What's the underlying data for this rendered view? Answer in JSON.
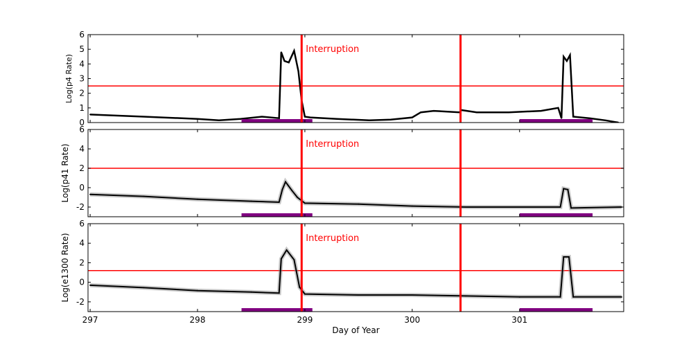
{
  "chart_data": {
    "type": "scatter",
    "xlabel": "Day of Year",
    "xlim": [
      296.98,
      301.97
    ],
    "xticks": [
      297,
      298,
      299,
      300,
      301
    ],
    "colors": {
      "data": "#000000",
      "threshold": "#ff0000",
      "interruption": "#ff0000",
      "interval": "#800080"
    },
    "interruptions": [
      298.97,
      300.45
    ],
    "interruption_label": "Interruption",
    "intervals": [
      [
        298.41,
        299.07
      ],
      [
        301.0,
        301.68
      ]
    ],
    "panels": [
      {
        "ylabel": "Log(p4 Rate)",
        "ylim": [
          0,
          6
        ],
        "yticks": [
          0,
          1,
          2,
          3,
          4,
          5,
          6
        ],
        "threshold": 2.5,
        "series": [
          [
            297.0,
            0.55
          ],
          [
            297.5,
            0.4
          ],
          [
            298.0,
            0.25
          ],
          [
            298.2,
            0.15
          ],
          [
            298.4,
            0.25
          ],
          [
            298.6,
            0.4
          ],
          [
            298.76,
            0.3
          ],
          [
            298.78,
            4.8
          ],
          [
            298.81,
            4.2
          ],
          [
            298.85,
            4.1
          ],
          [
            298.9,
            4.9
          ],
          [
            298.94,
            3.5
          ],
          [
            298.97,
            1.5
          ],
          [
            299.0,
            0.4
          ],
          [
            299.05,
            0.35
          ],
          [
            299.3,
            0.25
          ],
          [
            299.6,
            0.15
          ],
          [
            299.8,
            0.2
          ],
          [
            300.0,
            0.35
          ],
          [
            300.08,
            0.7
          ],
          [
            300.2,
            0.8
          ],
          [
            300.44,
            0.7
          ],
          [
            300.46,
            0.85
          ],
          [
            300.6,
            0.7
          ],
          [
            300.9,
            0.7
          ],
          [
            301.2,
            0.8
          ],
          [
            301.36,
            1.0
          ],
          [
            301.39,
            0.3
          ],
          [
            301.41,
            4.5
          ],
          [
            301.44,
            4.2
          ],
          [
            301.47,
            4.6
          ],
          [
            301.5,
            0.4
          ],
          [
            301.65,
            0.3
          ],
          [
            301.8,
            0.15
          ],
          [
            301.92,
            0.0
          ]
        ]
      },
      {
        "ylabel": "Log(p41 Rate)",
        "ylim": [
          -3,
          6
        ],
        "yticks": [
          -2,
          0,
          2,
          4,
          6
        ],
        "threshold": 2.0,
        "series": [
          [
            297.0,
            -0.7
          ],
          [
            297.5,
            -0.9
          ],
          [
            298.0,
            -1.2
          ],
          [
            298.5,
            -1.4
          ],
          [
            298.76,
            -1.5
          ],
          [
            298.79,
            -0.2
          ],
          [
            298.82,
            0.6
          ],
          [
            298.88,
            -0.3
          ],
          [
            298.93,
            -1.0
          ],
          [
            299.0,
            -1.6
          ],
          [
            299.5,
            -1.7
          ],
          [
            300.0,
            -1.9
          ],
          [
            300.5,
            -2.0
          ],
          [
            301.0,
            -2.0
          ],
          [
            301.38,
            -2.0
          ],
          [
            301.41,
            -0.1
          ],
          [
            301.45,
            -0.2
          ],
          [
            301.48,
            -2.1
          ],
          [
            301.95,
            -2.0
          ]
        ]
      },
      {
        "ylabel": "Log(e1300 Rate)",
        "ylim": [
          -3,
          6
        ],
        "yticks": [
          -2,
          0,
          2,
          4,
          6
        ],
        "threshold": 1.2,
        "series": [
          [
            297.0,
            -0.3
          ],
          [
            297.5,
            -0.55
          ],
          [
            298.0,
            -0.85
          ],
          [
            298.5,
            -1.0
          ],
          [
            298.76,
            -1.1
          ],
          [
            298.78,
            2.4
          ],
          [
            298.83,
            3.3
          ],
          [
            298.9,
            2.3
          ],
          [
            298.95,
            -0.5
          ],
          [
            299.0,
            -1.2
          ],
          [
            299.5,
            -1.3
          ],
          [
            300.0,
            -1.3
          ],
          [
            300.5,
            -1.4
          ],
          [
            301.0,
            -1.5
          ],
          [
            301.38,
            -1.5
          ],
          [
            301.41,
            2.6
          ],
          [
            301.46,
            2.6
          ],
          [
            301.5,
            -1.5
          ],
          [
            301.95,
            -1.5
          ]
        ]
      }
    ]
  }
}
